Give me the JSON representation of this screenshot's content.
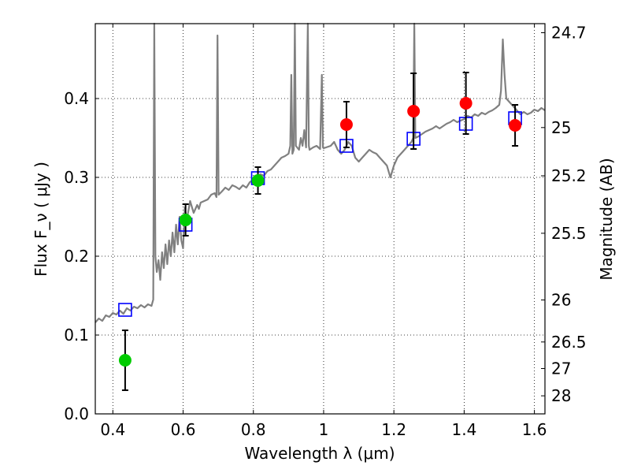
{
  "chart_data": {
    "type": "scatter",
    "xlabel": "Wavelength  λ (μm)",
    "ylabel": "Flux  F_ν  ( μJy )",
    "ylabel_right": "Magnitude (AB)",
    "xlim": [
      0.35,
      1.63
    ],
    "ylim": [
      0.0,
      0.495
    ],
    "grid": true,
    "x_ticks": [
      0.4,
      0.6,
      0.8,
      1.0,
      1.2,
      1.4,
      1.6
    ],
    "x_tick_labels": [
      "0.4",
      "0.6",
      "0.8",
      "1",
      "1.2",
      "1.4",
      "1.6"
    ],
    "y_ticks": [
      0.0,
      0.1,
      0.2,
      0.3,
      0.4
    ],
    "y_tick_labels": [
      "0.0",
      "0.1",
      "0.2",
      "0.3",
      "0.4"
    ],
    "y2_ticks": [
      {
        "label": "24.7",
        "flux": 0.4835
      },
      {
        "label": "25",
        "flux": 0.3632
      },
      {
        "label": "25.2",
        "flux": 0.302
      },
      {
        "label": "25.5",
        "flux": 0.2291
      },
      {
        "label": "26",
        "flux": 0.1445
      },
      {
        "label": "26.5",
        "flux": 0.0912
      },
      {
        "label": "27",
        "flux": 0.0575
      },
      {
        "label": "28",
        "flux": 0.0229
      }
    ],
    "series": [
      {
        "kind": "line",
        "color": "#808080",
        "points": [
          [
            0.35,
            0.116
          ],
          [
            0.36,
            0.121
          ],
          [
            0.37,
            0.118
          ],
          [
            0.38,
            0.125
          ],
          [
            0.39,
            0.123
          ],
          [
            0.4,
            0.128
          ],
          [
            0.41,
            0.126
          ],
          [
            0.42,
            0.131
          ],
          [
            0.43,
            0.127
          ],
          [
            0.44,
            0.134
          ],
          [
            0.45,
            0.131
          ],
          [
            0.46,
            0.136
          ],
          [
            0.47,
            0.134
          ],
          [
            0.48,
            0.138
          ],
          [
            0.49,
            0.135
          ],
          [
            0.5,
            0.139
          ],
          [
            0.51,
            0.137
          ],
          [
            0.515,
            0.145
          ],
          [
            0.518,
            0.495
          ],
          [
            0.521,
            0.2
          ],
          [
            0.525,
            0.18
          ],
          [
            0.53,
            0.195
          ],
          [
            0.535,
            0.17
          ],
          [
            0.54,
            0.205
          ],
          [
            0.545,
            0.185
          ],
          [
            0.55,
            0.215
          ],
          [
            0.555,
            0.19
          ],
          [
            0.56,
            0.22
          ],
          [
            0.565,
            0.2
          ],
          [
            0.57,
            0.23
          ],
          [
            0.575,
            0.205
          ],
          [
            0.58,
            0.24
          ],
          [
            0.585,
            0.215
          ],
          [
            0.59,
            0.25
          ],
          [
            0.595,
            0.22
          ],
          [
            0.6,
            0.21
          ],
          [
            0.605,
            0.262
          ],
          [
            0.61,
            0.245
          ],
          [
            0.62,
            0.27
          ],
          [
            0.63,
            0.255
          ],
          [
            0.64,
            0.265
          ],
          [
            0.645,
            0.26
          ],
          [
            0.65,
            0.268
          ],
          [
            0.66,
            0.27
          ],
          [
            0.67,
            0.272
          ],
          [
            0.68,
            0.278
          ],
          [
            0.69,
            0.28
          ],
          [
            0.695,
            0.275
          ],
          [
            0.698,
            0.48
          ],
          [
            0.701,
            0.278
          ],
          [
            0.71,
            0.282
          ],
          [
            0.72,
            0.287
          ],
          [
            0.73,
            0.284
          ],
          [
            0.74,
            0.29
          ],
          [
            0.75,
            0.288
          ],
          [
            0.76,
            0.285
          ],
          [
            0.77,
            0.29
          ],
          [
            0.78,
            0.287
          ],
          [
            0.79,
            0.294
          ],
          [
            0.8,
            0.297
          ],
          [
            0.81,
            0.3
          ],
          [
            0.82,
            0.304
          ],
          [
            0.83,
            0.302
          ],
          [
            0.84,
            0.308
          ],
          [
            0.85,
            0.31
          ],
          [
            0.86,
            0.315
          ],
          [
            0.87,
            0.32
          ],
          [
            0.88,
            0.325
          ],
          [
            0.89,
            0.327
          ],
          [
            0.9,
            0.33
          ],
          [
            0.905,
            0.34
          ],
          [
            0.908,
            0.43
          ],
          [
            0.911,
            0.33
          ],
          [
            0.915,
            0.335
          ],
          [
            0.918,
            0.495
          ],
          [
            0.921,
            0.34
          ],
          [
            0.93,
            0.335
          ],
          [
            0.935,
            0.35
          ],
          [
            0.94,
            0.34
          ],
          [
            0.945,
            0.36
          ],
          [
            0.95,
            0.338
          ],
          [
            0.955,
            0.495
          ],
          [
            0.958,
            0.34
          ],
          [
            0.96,
            0.335
          ],
          [
            0.97,
            0.338
          ],
          [
            0.98,
            0.34
          ],
          [
            0.99,
            0.336
          ],
          [
            0.995,
            0.43
          ],
          [
            0.998,
            0.338
          ],
          [
            1.0,
            0.337
          ],
          [
            1.02,
            0.34
          ],
          [
            1.03,
            0.345
          ],
          [
            1.04,
            0.335
          ],
          [
            1.05,
            0.33
          ],
          [
            1.06,
            0.335
          ],
          [
            1.07,
            0.345
          ],
          [
            1.08,
            0.34
          ],
          [
            1.09,
            0.325
          ],
          [
            1.1,
            0.32
          ],
          [
            1.11,
            0.325
          ],
          [
            1.12,
            0.33
          ],
          [
            1.13,
            0.335
          ],
          [
            1.14,
            0.332
          ],
          [
            1.15,
            0.33
          ],
          [
            1.16,
            0.325
          ],
          [
            1.17,
            0.32
          ],
          [
            1.18,
            0.315
          ],
          [
            1.19,
            0.3
          ],
          [
            1.2,
            0.315
          ],
          [
            1.21,
            0.325
          ],
          [
            1.22,
            0.33
          ],
          [
            1.23,
            0.335
          ],
          [
            1.24,
            0.34
          ],
          [
            1.25,
            0.345
          ],
          [
            1.255,
            0.35
          ],
          [
            1.258,
            0.495
          ],
          [
            1.261,
            0.35
          ],
          [
            1.27,
            0.352
          ],
          [
            1.28,
            0.355
          ],
          [
            1.29,
            0.358
          ],
          [
            1.3,
            0.36
          ],
          [
            1.31,
            0.362
          ],
          [
            1.32,
            0.365
          ],
          [
            1.33,
            0.362
          ],
          [
            1.34,
            0.365
          ],
          [
            1.35,
            0.368
          ],
          [
            1.36,
            0.37
          ],
          [
            1.37,
            0.373
          ],
          [
            1.38,
            0.37
          ],
          [
            1.39,
            0.372
          ],
          [
            1.4,
            0.374
          ],
          [
            1.41,
            0.378
          ],
          [
            1.42,
            0.376
          ],
          [
            1.43,
            0.38
          ],
          [
            1.44,
            0.378
          ],
          [
            1.45,
            0.382
          ],
          [
            1.46,
            0.38
          ],
          [
            1.47,
            0.383
          ],
          [
            1.48,
            0.385
          ],
          [
            1.49,
            0.388
          ],
          [
            1.5,
            0.392
          ],
          [
            1.505,
            0.41
          ],
          [
            1.51,
            0.475
          ],
          [
            1.515,
            0.43
          ],
          [
            1.52,
            0.4
          ],
          [
            1.53,
            0.395
          ],
          [
            1.54,
            0.39
          ],
          [
            1.55,
            0.385
          ],
          [
            1.56,
            0.38
          ],
          [
            1.57,
            0.383
          ],
          [
            1.58,
            0.38
          ],
          [
            1.59,
            0.382
          ],
          [
            1.6,
            0.386
          ],
          [
            1.61,
            0.384
          ],
          [
            1.62,
            0.388
          ],
          [
            1.63,
            0.385
          ]
        ]
      },
      {
        "kind": "squares",
        "color": "#0000ff",
        "points": [
          [
            0.435,
            0.132
          ],
          [
            0.607,
            0.24
          ],
          [
            0.813,
            0.299
          ],
          [
            1.065,
            0.34
          ],
          [
            1.256,
            0.349
          ],
          [
            1.405,
            0.368
          ],
          [
            1.545,
            0.375
          ]
        ]
      },
      {
        "kind": "points-errorbars",
        "color": "#00cc00",
        "points": [
          {
            "x": 0.435,
            "y": 0.068,
            "err": 0.038
          },
          {
            "x": 0.607,
            "y": 0.246,
            "err": 0.02
          },
          {
            "x": 0.813,
            "y": 0.296,
            "err": 0.017
          }
        ]
      },
      {
        "kind": "points-errorbars",
        "color": "#ff0000",
        "points": [
          {
            "x": 1.065,
            "y": 0.367,
            "err": 0.029
          },
          {
            "x": 1.256,
            "y": 0.384,
            "err": 0.048
          },
          {
            "x": 1.405,
            "y": 0.394,
            "err": 0.039
          },
          {
            "x": 1.545,
            "y": 0.366,
            "err": 0.026
          }
        ]
      }
    ]
  }
}
